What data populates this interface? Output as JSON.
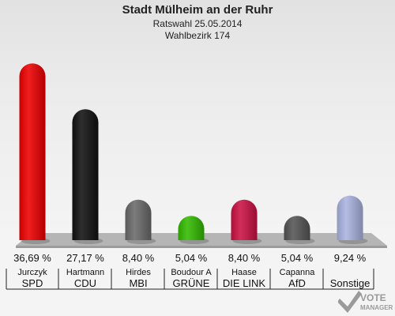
{
  "title": "Stadt Mülheim an der Ruhr",
  "subtitle": "Ratswahl 25.05.2014",
  "subtitle2": "Wahlbezirk 174",
  "watermark": {
    "line1": "VOTE",
    "line2": "MANAGER"
  },
  "chart_data": {
    "type": "bar",
    "title": "Stadt Mülheim an der Ruhr",
    "categories": [
      "SPD",
      "CDU",
      "MBI",
      "GRÜNE",
      "DIE LINKE",
      "AfD",
      "Sonstige"
    ],
    "candidates": [
      "Jurczyk",
      "Hartmann",
      "Hirdes",
      "Boudour A",
      "Haase",
      "Capanna",
      ""
    ],
    "values": [
      36.69,
      27.17,
      8.4,
      5.04,
      8.4,
      5.04,
      9.24
    ],
    "value_labels": [
      "36,69 %",
      "27,17 %",
      "8,40 %",
      "5,04 %",
      "8,40 %",
      "5,04 %",
      "9,24 %"
    ],
    "category_labels": [
      "SPD",
      "CDU",
      "MBI",
      "GRÜNE",
      "DIE LINK",
      "AfD",
      "Sonstige"
    ],
    "colors": [
      "#ee0000",
      "#111111",
      "#6a6a6a",
      "#33bb00",
      "#cc1144",
      "#555555",
      "#aab4e0"
    ],
    "ylim": [
      0,
      40
    ],
    "grid": false,
    "legend": "none"
  }
}
